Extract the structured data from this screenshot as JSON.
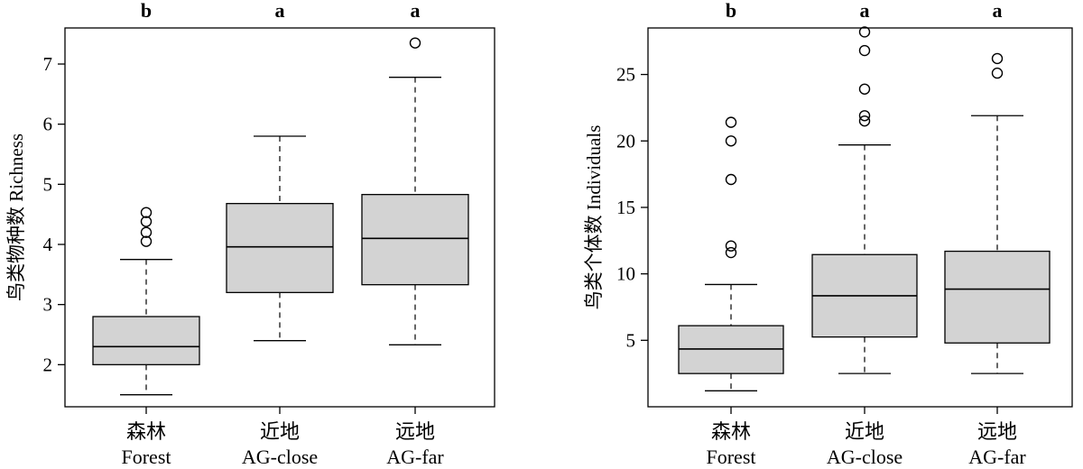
{
  "chart_data": [
    {
      "type": "box",
      "ylabel": "鸟类物种数 Richness",
      "ylim": [
        1.3,
        7.6
      ],
      "yticks": [
        2,
        3,
        4,
        5,
        6,
        7
      ],
      "categories": [
        {
          "zh": "森林",
          "en": "Forest"
        },
        {
          "zh": "近地",
          "en": "AG-close"
        },
        {
          "zh": "远地",
          "en": "AG-far"
        }
      ],
      "letters": [
        "b",
        "a",
        "a"
      ],
      "boxes": [
        {
          "whisker_low": 1.5,
          "q1": 2.0,
          "median": 2.3,
          "q3": 2.8,
          "whisker_high": 3.75,
          "outliers": [
            4.05,
            4.2,
            4.38,
            4.53
          ]
        },
        {
          "whisker_low": 2.4,
          "q1": 3.2,
          "median": 3.96,
          "q3": 4.68,
          "whisker_high": 5.8,
          "outliers": []
        },
        {
          "whisker_low": 2.33,
          "q1": 3.33,
          "median": 4.1,
          "q3": 4.83,
          "whisker_high": 6.78,
          "outliers": [
            7.35
          ]
        }
      ]
    },
    {
      "type": "box",
      "ylabel": "鸟类个体数 Individuals",
      "ylim": [
        0,
        28.5
      ],
      "yticks": [
        5,
        10,
        15,
        20,
        25
      ],
      "categories": [
        {
          "zh": "森林",
          "en": "Forest"
        },
        {
          "zh": "近地",
          "en": "AG-close"
        },
        {
          "zh": "远地",
          "en": "AG-far"
        }
      ],
      "letters": [
        "b",
        "a",
        "a"
      ],
      "boxes": [
        {
          "whisker_low": 1.2,
          "q1": 2.5,
          "median": 4.35,
          "q3": 6.1,
          "whisker_high": 9.2,
          "outliers": [
            11.6,
            12.1,
            17.1,
            20.0,
            21.4
          ]
        },
        {
          "whisker_low": 2.5,
          "q1": 5.25,
          "median": 8.35,
          "q3": 11.45,
          "whisker_high": 19.7,
          "outliers": [
            21.5,
            21.9,
            23.9,
            26.8,
            28.2
          ]
        },
        {
          "whisker_low": 2.5,
          "q1": 4.8,
          "median": 8.85,
          "q3": 11.7,
          "whisker_high": 21.9,
          "outliers": [
            25.1,
            26.2
          ]
        }
      ]
    }
  ]
}
